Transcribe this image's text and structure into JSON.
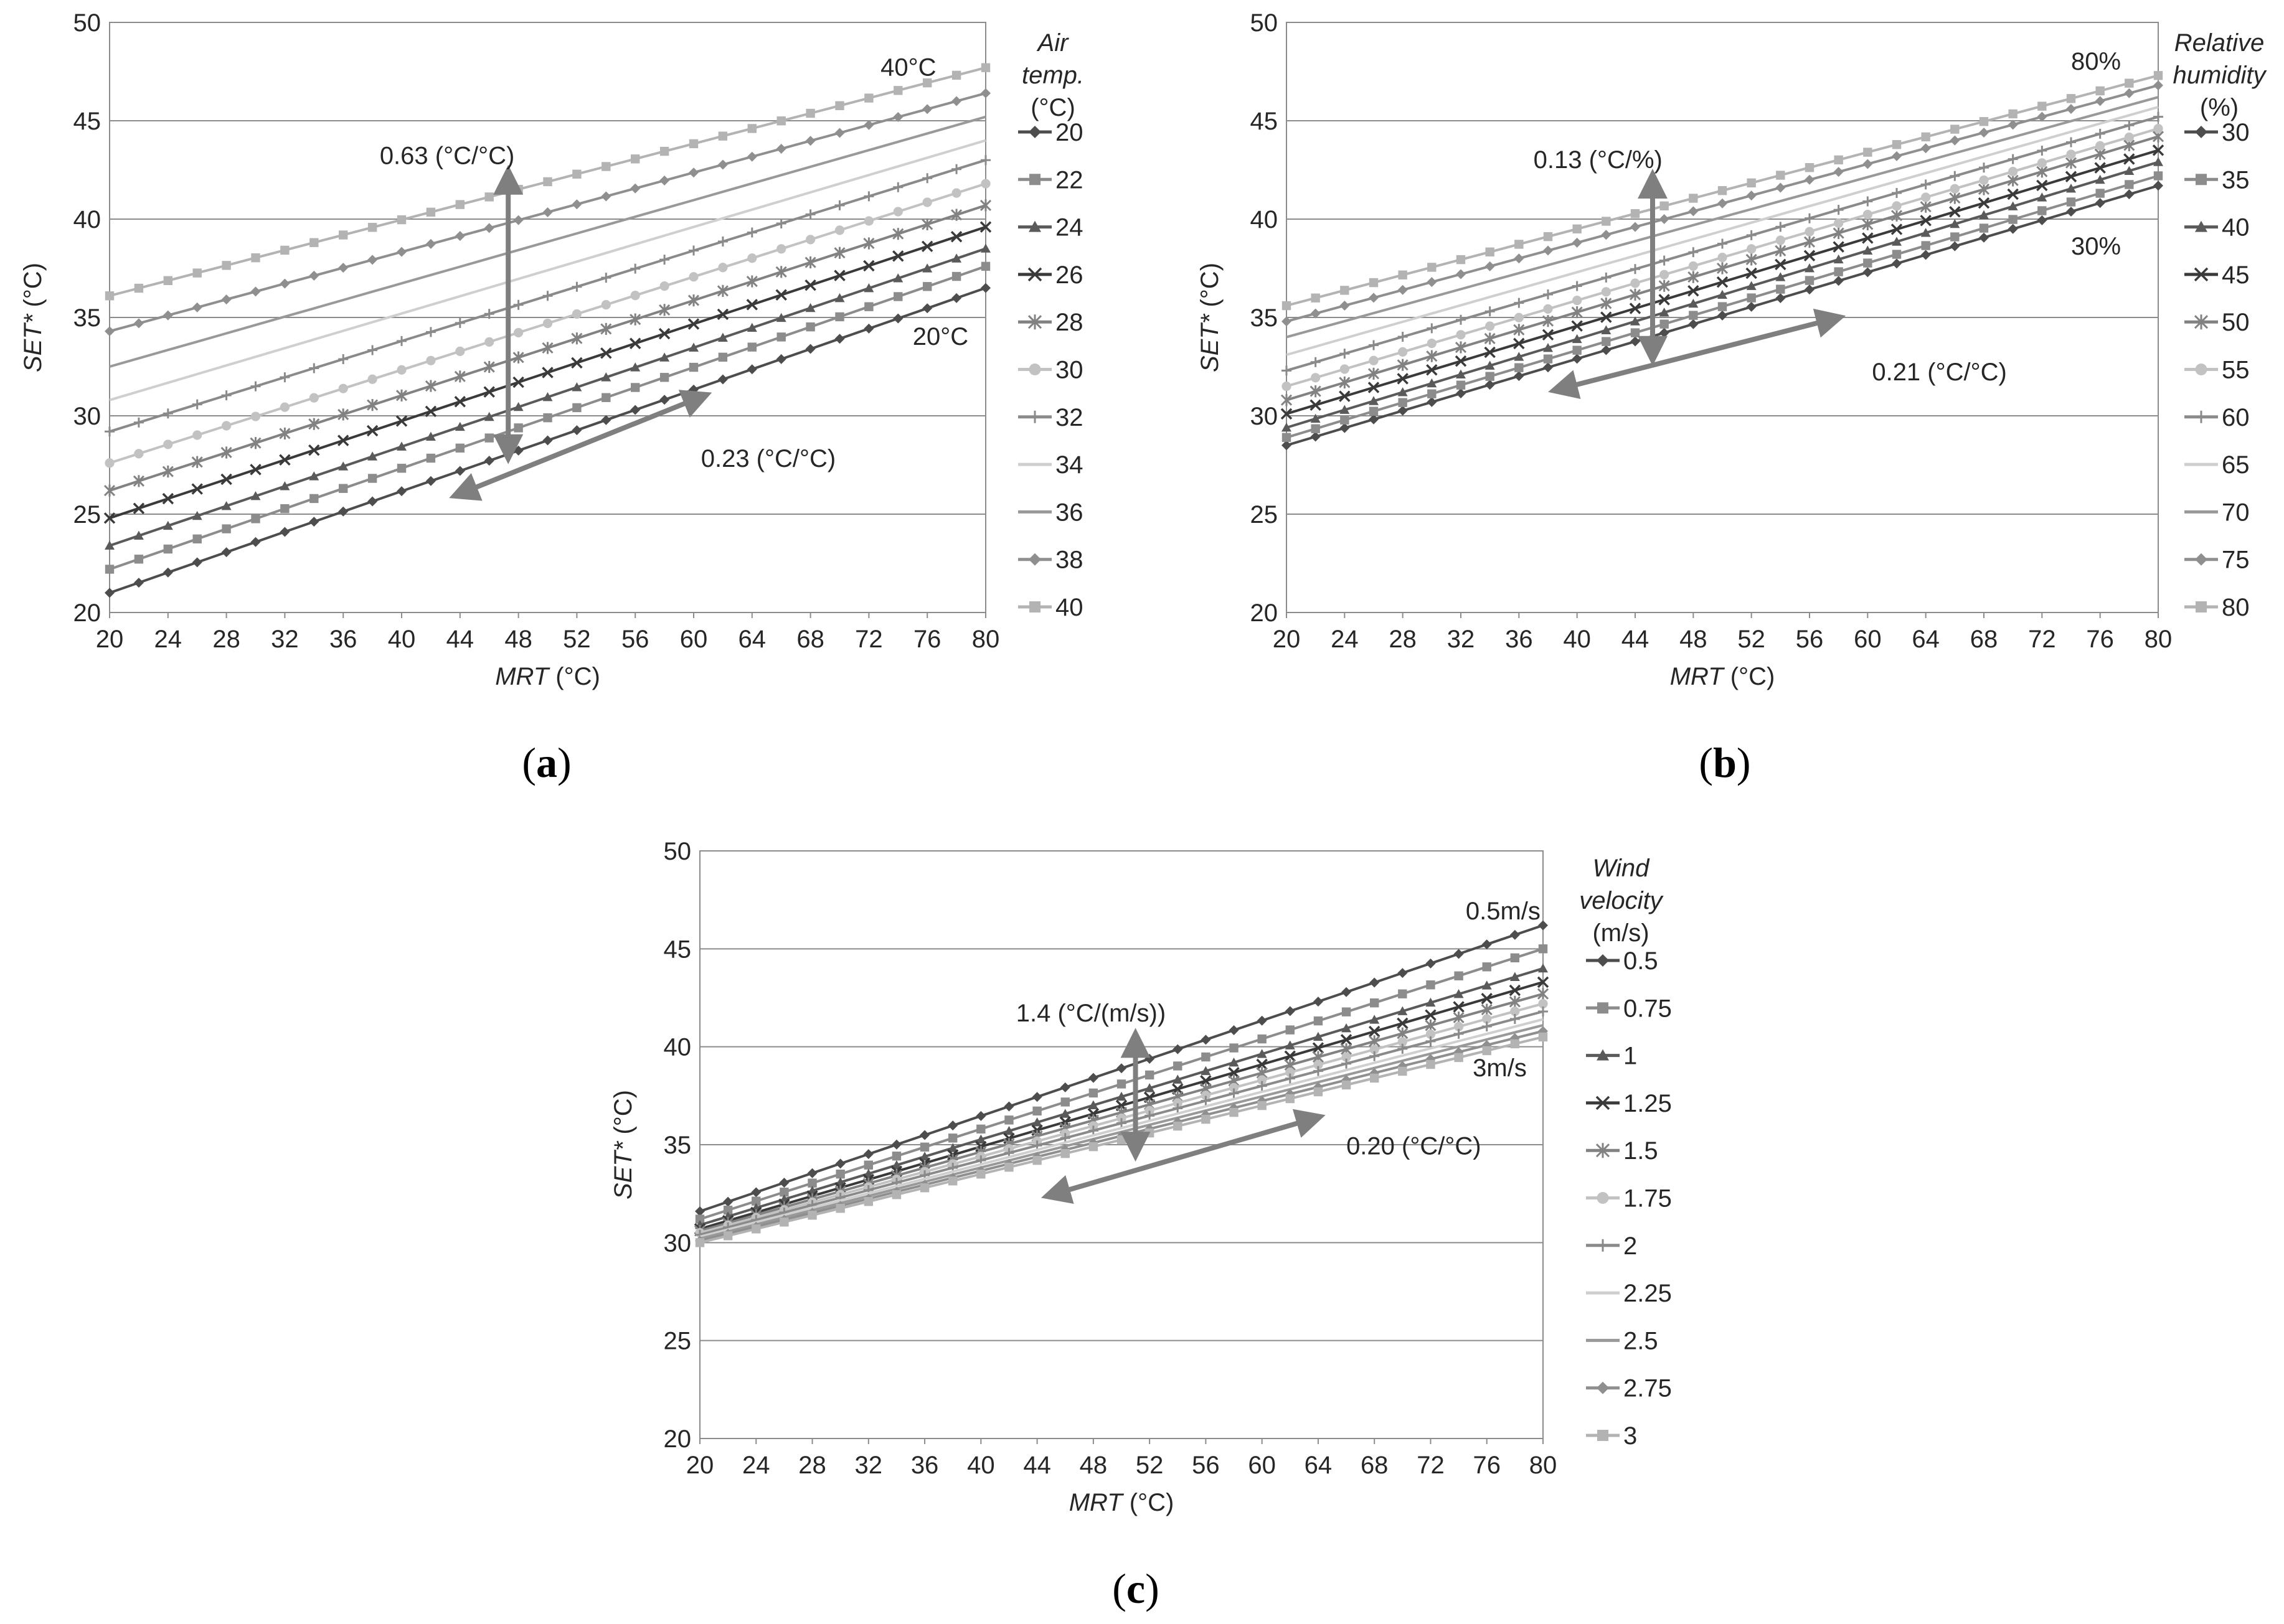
{
  "chart_data": [
    {
      "id": "a",
      "type": "line",
      "panel_label": "a",
      "xlabel_italic": "MRT",
      "xlabel_rest": " (°C)",
      "ylabel_italic": "SET*",
      "ylabel_rest": " (°C)",
      "xlim": [
        20,
        80
      ],
      "ylim": [
        20,
        50
      ],
      "x_ticks": [
        20,
        24,
        28,
        32,
        36,
        40,
        44,
        48,
        52,
        56,
        60,
        64,
        68,
        72,
        76,
        80
      ],
      "y_ticks": [
        20,
        25,
        30,
        35,
        40,
        45,
        50
      ],
      "grid": true,
      "legend": {
        "title_lines": [
          "Air",
          "temp.",
          "(°C)"
        ],
        "title_italic": [
          true,
          true,
          false
        ],
        "placement": "right"
      },
      "series": [
        {
          "name": "20",
          "start": 21.0,
          "end": 36.5,
          "color": "#4d4d4d",
          "marker": "diamond"
        },
        {
          "name": "22",
          "start": 22.2,
          "end": 37.6,
          "color": "#8c8c8c",
          "marker": "square"
        },
        {
          "name": "24",
          "start": 23.4,
          "end": 38.5,
          "color": "#5a5a5a",
          "marker": "triangle"
        },
        {
          "name": "26",
          "start": 24.8,
          "end": 39.6,
          "color": "#3a3a3a",
          "marker": "x"
        },
        {
          "name": "28",
          "start": 26.2,
          "end": 40.7,
          "color": "#828282",
          "marker": "star"
        },
        {
          "name": "30",
          "start": 27.6,
          "end": 41.8,
          "color": "#c2c2c2",
          "marker": "circle"
        },
        {
          "name": "32",
          "start": 29.2,
          "end": 43.0,
          "color": "#8a8a8a",
          "marker": "plus"
        },
        {
          "name": "34",
          "start": 30.8,
          "end": 44.0,
          "color": "#cfcfcf",
          "marker": "none"
        },
        {
          "name": "36",
          "start": 32.5,
          "end": 45.2,
          "color": "#999999",
          "marker": "none"
        },
        {
          "name": "38",
          "start": 34.3,
          "end": 46.4,
          "color": "#8f8f8f",
          "marker": "diamond"
        },
        {
          "name": "40",
          "start": 36.1,
          "end": 47.7,
          "color": "#b3b3b3",
          "marker": "square"
        }
      ],
      "annotations": [
        {
          "text": "0.63 (°C/°C)",
          "x": 38.5,
          "y": 42.8
        },
        {
          "text": "0.23 (°C/°C)",
          "x": 60.5,
          "y": 27.4
        },
        {
          "text": "40°C",
          "x": 72.8,
          "y": 47.3
        },
        {
          "text": "20°C",
          "x": 75.0,
          "y": 33.6
        }
      ],
      "arrows": [
        {
          "x1": 47.3,
          "y1": 42.0,
          "x2": 47.3,
          "y2": 28.3
        },
        {
          "x1": 60.3,
          "y1": 30.9,
          "x2": 44.2,
          "y2": 26.1
        }
      ]
    },
    {
      "id": "b",
      "type": "line",
      "panel_label": "b",
      "xlabel_italic": "MRT",
      "xlabel_rest": " (°C)",
      "ylabel_italic": "SET*",
      "ylabel_rest": " (°C)",
      "xlim": [
        20,
        80
      ],
      "ylim": [
        20,
        50
      ],
      "x_ticks": [
        20,
        24,
        28,
        32,
        36,
        40,
        44,
        48,
        52,
        56,
        60,
        64,
        68,
        72,
        76,
        80
      ],
      "y_ticks": [
        20,
        25,
        30,
        35,
        40,
        45,
        50
      ],
      "grid": true,
      "legend": {
        "title_lines": [
          "Relative",
          "humidity",
          "(%)"
        ],
        "title_italic": [
          true,
          true,
          false
        ],
        "placement": "right"
      },
      "series": [
        {
          "name": "30",
          "start": 28.5,
          "end": 41.7,
          "color": "#4d4d4d",
          "marker": "diamond"
        },
        {
          "name": "35",
          "start": 28.9,
          "end": 42.2,
          "color": "#8c8c8c",
          "marker": "square"
        },
        {
          "name": "40",
          "start": 29.4,
          "end": 42.9,
          "color": "#5a5a5a",
          "marker": "triangle"
        },
        {
          "name": "45",
          "start": 30.1,
          "end": 43.5,
          "color": "#3a3a3a",
          "marker": "x"
        },
        {
          "name": "50",
          "start": 30.8,
          "end": 44.2,
          "color": "#828282",
          "marker": "star"
        },
        {
          "name": "55",
          "start": 31.5,
          "end": 44.6,
          "color": "#c2c2c2",
          "marker": "circle"
        },
        {
          "name": "60",
          "start": 32.3,
          "end": 45.2,
          "color": "#8a8a8a",
          "marker": "plus"
        },
        {
          "name": "65",
          "start": 33.1,
          "end": 45.7,
          "color": "#cfcfcf",
          "marker": "none"
        },
        {
          "name": "70",
          "start": 34.0,
          "end": 46.2,
          "color": "#999999",
          "marker": "none"
        },
        {
          "name": "75",
          "start": 34.8,
          "end": 46.8,
          "color": "#8f8f8f",
          "marker": "diamond"
        },
        {
          "name": "80",
          "start": 35.6,
          "end": 47.3,
          "color": "#b3b3b3",
          "marker": "square"
        }
      ],
      "annotations": [
        {
          "text": "0.13 (°C/%)",
          "x": 37.0,
          "y": 42.6
        },
        {
          "text": "0.21 (°C/°C)",
          "x": 60.3,
          "y": 31.8
        },
        {
          "text": "80%",
          "x": 74.0,
          "y": 47.6
        },
        {
          "text": "30%",
          "x": 74.0,
          "y": 38.2
        }
      ],
      "arrows": [
        {
          "x1": 45.2,
          "y1": 41.8,
          "x2": 45.2,
          "y2": 33.3
        },
        {
          "x1": 57.5,
          "y1": 34.9,
          "x2": 39.0,
          "y2": 31.4
        }
      ]
    },
    {
      "id": "c",
      "type": "line",
      "panel_label": "c",
      "xlabel_italic": "MRT",
      "xlabel_rest": " (°C)",
      "ylabel_italic": "SET*",
      "ylabel_rest": " (°C)",
      "xlim": [
        20,
        80
      ],
      "ylim": [
        20,
        50
      ],
      "x_ticks": [
        20,
        24,
        28,
        32,
        36,
        40,
        44,
        48,
        52,
        56,
        60,
        64,
        68,
        72,
        76,
        80
      ],
      "y_ticks": [
        20,
        25,
        30,
        35,
        40,
        45,
        50
      ],
      "grid": true,
      "legend": {
        "title_lines": [
          "Wind",
          "velocity",
          "(m/s)"
        ],
        "title_italic": [
          true,
          true,
          false
        ],
        "placement": "right"
      },
      "series": [
        {
          "name": "0.5",
          "start": 31.6,
          "end": 46.2,
          "color": "#4d4d4d",
          "marker": "diamond"
        },
        {
          "name": "0.75",
          "start": 31.2,
          "end": 45.0,
          "color": "#8c8c8c",
          "marker": "square"
        },
        {
          "name": "1",
          "start": 30.9,
          "end": 44.0,
          "color": "#5a5a5a",
          "marker": "triangle"
        },
        {
          "name": "1.25",
          "start": 30.7,
          "end": 43.3,
          "color": "#3a3a3a",
          "marker": "x"
        },
        {
          "name": "1.5",
          "start": 30.6,
          "end": 42.7,
          "color": "#828282",
          "marker": "star"
        },
        {
          "name": "1.75",
          "start": 30.5,
          "end": 42.2,
          "color": "#c2c2c2",
          "marker": "circle"
        },
        {
          "name": "2",
          "start": 30.4,
          "end": 41.8,
          "color": "#8a8a8a",
          "marker": "plus"
        },
        {
          "name": "2.25",
          "start": 30.3,
          "end": 41.4,
          "color": "#cfcfcf",
          "marker": "none"
        },
        {
          "name": "2.5",
          "start": 30.2,
          "end": 41.1,
          "color": "#999999",
          "marker": "none"
        },
        {
          "name": "2.75",
          "start": 30.1,
          "end": 40.8,
          "color": "#8f8f8f",
          "marker": "diamond"
        },
        {
          "name": "3",
          "start": 30.0,
          "end": 40.5,
          "color": "#b3b3b3",
          "marker": "square"
        }
      ],
      "annotations": [
        {
          "text": "1.4 (°C/(m/s))",
          "x": 42.5,
          "y": 41.3
        },
        {
          "text": "0.20 (°C/°C)",
          "x": 66.0,
          "y": 34.5
        },
        {
          "text": "0.5m/s",
          "x": 74.5,
          "y": 46.5
        },
        {
          "text": "3m/s",
          "x": 75.0,
          "y": 38.5
        }
      ],
      "arrows": [
        {
          "x1": 51.0,
          "y1": 40.2,
          "x2": 51.0,
          "y2": 34.9
        },
        {
          "x1": 63.5,
          "y1": 36.3,
          "x2": 45.3,
          "y2": 32.5
        }
      ]
    }
  ]
}
